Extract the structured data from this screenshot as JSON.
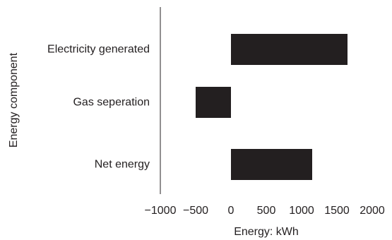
{
  "chart_data": {
    "type": "bar",
    "orientation": "horizontal",
    "categories": [
      "Electricity generated",
      "Gas seperation",
      "Net energy"
    ],
    "values": [
      1650,
      -500,
      1150
    ],
    "xlabel": "Energy: kWh",
    "ylabel": "Energy component",
    "xlim": [
      -1000,
      2000
    ],
    "xticks": [
      -1000,
      -500,
      0,
      500,
      1000,
      1500,
      2000
    ],
    "xtick_labels": [
      "−1000",
      "−500",
      "0",
      "500",
      "1000",
      "1500",
      "2000"
    ],
    "grid": false,
    "legend": "none",
    "bar_color": "#231f20"
  }
}
